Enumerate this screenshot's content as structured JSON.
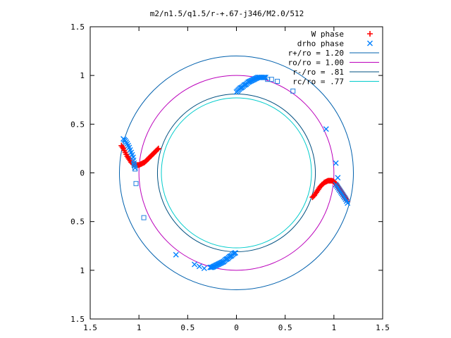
{
  "chart_data": {
    "type": "scatter",
    "title": "m2/n1.5/q1.5/r-+.67-j346/M2.0/512",
    "xlabel": "",
    "ylabel": "",
    "xlim": [
      -1.5,
      1.5
    ],
    "ylim": [
      -1.5,
      1.5
    ],
    "x_ticks": [
      -1.5,
      -1,
      -0.5,
      0,
      0.5,
      1,
      1.5
    ],
    "y_ticks": [
      -1.5,
      -1,
      -0.5,
      0,
      0.5,
      1,
      1.5
    ],
    "x_tick_labels": [
      "1.5",
      "1",
      "0.5",
      "0",
      "0.5",
      "1",
      "1.5"
    ],
    "y_tick_labels": [
      "1.5",
      "1",
      "0.5",
      "0",
      "0.5",
      "1",
      "1.5"
    ],
    "grid": false,
    "legend_position": "top-right",
    "series": [
      {
        "name": "W phase",
        "marker": "plus",
        "color": "#ff0000",
        "segments": [
          {
            "x": [
              -1.18,
              -1.16,
              -1.14,
              -1.12,
              -1.1,
              -1.08,
              -1.06,
              -1.04,
              -1.02,
              -1.0,
              -0.98,
              -0.96,
              -0.94,
              -0.92,
              -0.9,
              -0.88,
              -0.86,
              -0.84,
              -0.82,
              -0.8
            ],
            "y": [
              0.28,
              0.25,
              0.21,
              0.17,
              0.14,
              0.11,
              0.09,
              0.08,
              0.08,
              0.08,
              0.09,
              0.1,
              0.11,
              0.13,
              0.15,
              0.17,
              0.19,
              0.21,
              0.23,
              0.25
            ]
          },
          {
            "x": [
              0.78,
              0.8,
              0.82,
              0.84,
              0.86,
              0.88,
              0.9,
              0.92,
              0.94,
              0.96,
              0.98,
              1.0,
              1.02,
              1.04,
              1.06,
              1.08,
              1.1,
              1.12,
              1.14
            ],
            "y": [
              -0.25,
              -0.23,
              -0.2,
              -0.17,
              -0.14,
              -0.12,
              -0.1,
              -0.09,
              -0.08,
              -0.08,
              -0.08,
              -0.09,
              -0.11,
              -0.14,
              -0.17,
              -0.2,
              -0.23,
              -0.26,
              -0.29
            ]
          }
        ]
      },
      {
        "name": "drho phase",
        "marker": "cross",
        "color": "#0080ff",
        "segments": [
          {
            "x": [
              -1.16,
              -1.14,
              -1.12,
              -1.1,
              -1.08,
              -1.06,
              -1.05,
              -1.04
            ],
            "y": [
              0.35,
              0.33,
              0.3,
              0.26,
              0.21,
              0.16,
              0.1,
              0.05
            ]
          },
          {
            "x": [
              0.0,
              0.02,
              0.04,
              0.06,
              0.08,
              0.1,
              0.12,
              0.14,
              0.16,
              0.18,
              0.2,
              0.22,
              0.24,
              0.26,
              0.28,
              0.3
            ],
            "y": [
              0.83,
              0.85,
              0.87,
              0.88,
              0.9,
              0.91,
              0.93,
              0.94,
              0.95,
              0.96,
              0.97,
              0.98,
              0.98,
              0.98,
              0.98,
              0.98
            ]
          },
          {
            "x": [
              1.02,
              1.04,
              1.06,
              1.08,
              1.1,
              1.12,
              1.14
            ],
            "y": [
              -0.12,
              -0.15,
              -0.18,
              -0.21,
              -0.24,
              -0.27,
              -0.31
            ]
          },
          {
            "x": [
              -0.27,
              -0.25,
              -0.23,
              -0.21,
              -0.19,
              -0.17,
              -0.15,
              -0.13,
              -0.11,
              -0.09,
              -0.07,
              -0.05,
              -0.03,
              -0.01
            ],
            "y": [
              -0.97,
              -0.97,
              -0.96,
              -0.95,
              -0.94,
              -0.93,
              -0.92,
              -0.91,
              -0.89,
              -0.88,
              -0.86,
              -0.85,
              -0.83,
              -0.82
            ]
          }
        ]
      },
      {
        "name": "r+/ro = 1.20",
        "type": "circle",
        "radius": 1.2,
        "color": "#0060ad"
      },
      {
        "name": "ro/ro = 1.00",
        "type": "circle",
        "radius": 1.0,
        "color": "#bb00bb"
      },
      {
        "name": "r-/ro = .81",
        "type": "circle",
        "radius": 0.81,
        "color": "#005080"
      },
      {
        "name": "rc/ro = .77",
        "type": "circle",
        "radius": 0.77,
        "color": "#00cccc"
      }
    ],
    "extra_markers": {
      "squares": {
        "color": "#2080e0",
        "x": [
          -1.05,
          -1.04,
          -1.03,
          -0.95,
          0.32,
          0.36,
          0.42,
          0.58
        ],
        "y": [
          0.08,
          0.04,
          -0.11,
          -0.46,
          0.96,
          0.96,
          0.94,
          0.84
        ],
        "scatter_x": [
          -0.62,
          -0.43,
          -0.38,
          -0.33,
          0.92,
          1.02,
          1.04
        ],
        "scatter_y": [
          -0.84,
          -0.94,
          -0.96,
          -0.98,
          0.45,
          0.1,
          -0.05
        ]
      }
    }
  }
}
